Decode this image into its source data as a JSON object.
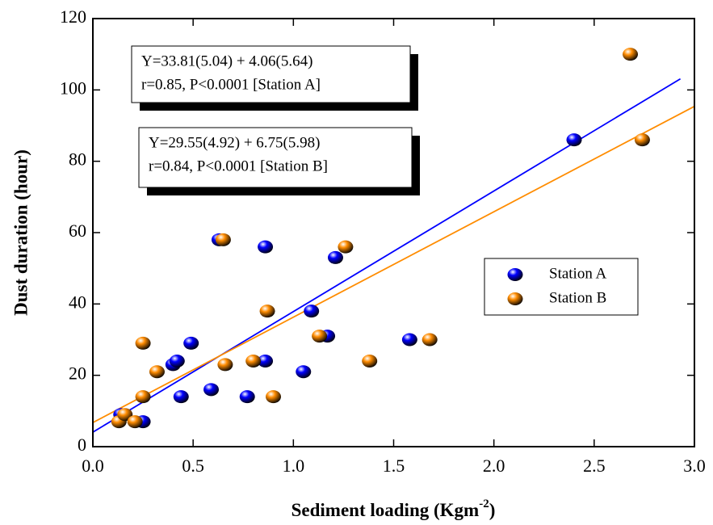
{
  "chart_data": {
    "type": "scatter",
    "xlabel": [
      "Sediment loading (Kgm",
      "-2",
      ")"
    ],
    "ylabel": "Dust duration (hour)",
    "xlim": [
      0,
      3
    ],
    "ylim": [
      0,
      120
    ],
    "xticks": [
      {
        "value": 0,
        "label": "0.0"
      },
      0.5,
      {
        "value": 1,
        "label": "1.0"
      },
      1.5,
      {
        "value": 2,
        "label": "2.0"
      },
      2.5,
      {
        "value": 3,
        "label": "3.0"
      }
    ],
    "yticks": [
      0,
      20,
      40,
      60,
      80,
      100,
      120
    ],
    "series": [
      {
        "name": "Station A",
        "color": "#0000ff",
        "x": [
          0.14,
          0.25,
          0.4,
          0.42,
          0.44,
          0.49,
          0.59,
          0.63,
          0.77,
          0.86,
          0.86,
          1.05,
          1.09,
          1.17,
          1.21,
          1.58,
          2.4
        ],
        "values": [
          9,
          7,
          23,
          24,
          14,
          29,
          16,
          58,
          14,
          24,
          56,
          21,
          38,
          31,
          53,
          30,
          86
        ]
      },
      {
        "name": "Station B",
        "color": "#ff8c00",
        "x": [
          0.13,
          0.16,
          0.21,
          0.25,
          0.25,
          0.32,
          0.65,
          0.66,
          0.8,
          0.87,
          0.9,
          1.13,
          1.26,
          1.38,
          1.68,
          2.68,
          2.74
        ],
        "values": [
          7,
          9,
          7,
          29,
          14,
          21,
          58,
          23,
          24,
          38,
          14,
          31,
          56,
          24,
          30,
          110,
          86
        ]
      }
    ],
    "fit_lines": [
      {
        "color": "#0000ff",
        "x": [
          0,
          2.93
        ],
        "values": [
          4.06,
          103.1
        ]
      },
      {
        "color": "#ff8c00",
        "x": [
          0,
          3
        ],
        "values": [
          6.75,
          95.4
        ]
      }
    ],
    "annotations": [
      [
        "Y=33.81(5.04) + 4.06(5.64)",
        "r=0.85, P<0.0001 [Station A]"
      ],
      [
        "Y=29.55(4.92) + 6.75(5.98)",
        "r=0.84, P<0.0001 [Station B]"
      ]
    ],
    "legend": "center-right"
  }
}
